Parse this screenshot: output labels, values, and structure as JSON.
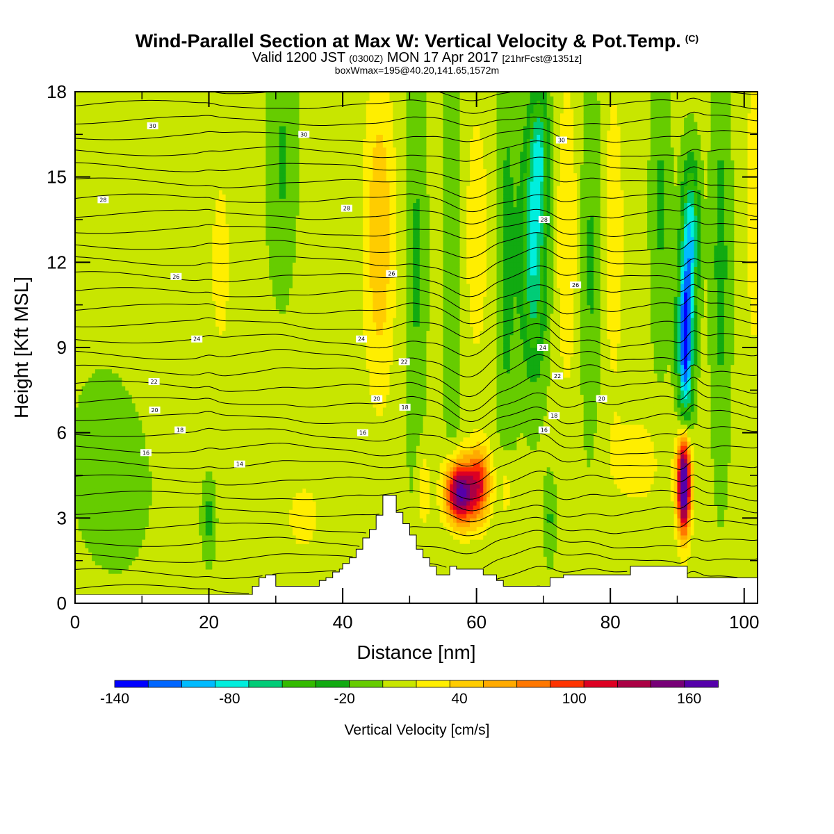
{
  "header": {
    "title": "Wind-Parallel Section at Max W: Vertical Velocity & Pot.Temp.",
    "title_mark": "(C)",
    "valid_prefix": "Valid 1200 JST",
    "valid_utc": "(0300Z)",
    "valid_date": "MON 17 Apr 2017",
    "forecast": "[21hrFcst@1351z]",
    "boxw": "boxWmax=195@40.20,141.65,1572m"
  },
  "chart_data": {
    "type": "heatmap",
    "xlabel": "Distance [nm]",
    "ylabel": "Height [Kft MSL]",
    "xlim": [
      0,
      102
    ],
    "ylim": [
      0,
      18
    ],
    "xticks": [
      0,
      20,
      40,
      60,
      80,
      100
    ],
    "yticks": [
      0,
      3,
      6,
      9,
      12,
      15,
      18
    ],
    "colorbar": {
      "title": "Vertical Velocity [cm/s]",
      "range": [
        -140,
        175
      ],
      "step": 17.5,
      "ticks": [
        "-140",
        "-80",
        "-20",
        "40",
        "100",
        "160"
      ],
      "tick_values": [
        -140,
        -80,
        -20,
        40,
        100,
        160
      ],
      "colors": [
        "#0000ff",
        "#0066ff",
        "#00bbff",
        "#00eedd",
        "#00cc77",
        "#33bb00",
        "#11aa11",
        "#66cc00",
        "#c8e600",
        "#ffee00",
        "#ffcc00",
        "#ffaa00",
        "#ff7700",
        "#ff3300",
        "#dd0022",
        "#aa0044",
        "#770077",
        "#5500aa"
      ]
    },
    "series": [
      {
        "name": "Vertical Velocity",
        "features": [
          {
            "x": 57.5,
            "y": 3.9,
            "w": 160,
            "sx": 1.5,
            "sy": 0.8
          },
          {
            "x": 60.5,
            "y": 4.2,
            "w": 90,
            "sx": 1.2,
            "sy": 0.9
          },
          {
            "x": 91.0,
            "y": 4.2,
            "w": 195,
            "sx": 0.7,
            "sy": 1.2
          },
          {
            "x": 91.2,
            "y": 9.2,
            "w": -140,
            "sx": 0.8,
            "sy": 2.0
          },
          {
            "x": 92.0,
            "y": 13.0,
            "w": -85,
            "sx": 0.9,
            "sy": 1.8
          },
          {
            "x": 68.5,
            "y": 12.5,
            "w": -80,
            "sx": 1.4,
            "sy": 3.0
          },
          {
            "x": 69.5,
            "y": 16.0,
            "w": -50,
            "sx": 1.0,
            "sy": 1.5
          },
          {
            "x": 45.5,
            "y": 13.0,
            "w": 45,
            "sx": 1.6,
            "sy": 4.0
          },
          {
            "x": 60.0,
            "y": 13.0,
            "w": 20,
            "sx": 1.6,
            "sy": 4.0
          },
          {
            "x": 73.5,
            "y": 13.0,
            "w": 28,
            "sx": 1.2,
            "sy": 4.0
          },
          {
            "x": 80.5,
            "y": 13.0,
            "w": 30,
            "sx": 1.0,
            "sy": 3.5
          },
          {
            "x": 101.5,
            "y": 14.0,
            "w": 30,
            "sx": 0.8,
            "sy": 3.5
          },
          {
            "x": 51.0,
            "y": 12.0,
            "w": -25,
            "sx": 1.0,
            "sy": 6.0
          },
          {
            "x": 56.5,
            "y": 12.0,
            "w": -22,
            "sx": 0.9,
            "sy": 6.0
          },
          {
            "x": 64.5,
            "y": 12.0,
            "w": -28,
            "sx": 1.0,
            "sy": 6.0
          },
          {
            "x": 77.0,
            "y": 12.0,
            "w": -25,
            "sx": 1.0,
            "sy": 5.0
          },
          {
            "x": 87.5,
            "y": 14.0,
            "w": -25,
            "sx": 1.0,
            "sy": 4.0
          },
          {
            "x": 96.5,
            "y": 12.0,
            "w": -30,
            "sx": 1.0,
            "sy": 5.0
          },
          {
            "x": 31.0,
            "y": 15.5,
            "w": -25,
            "sx": 1.5,
            "sy": 3.0
          },
          {
            "x": 20.0,
            "y": 3.0,
            "w": -30,
            "sx": 0.7,
            "sy": 1.0
          },
          {
            "x": 71.0,
            "y": 3.0,
            "w": -25,
            "sx": 0.6,
            "sy": 1.0
          },
          {
            "x": 64.5,
            "y": 4.0,
            "w": 28,
            "sx": 0.8,
            "sy": 1.0
          },
          {
            "x": 52.0,
            "y": 4.0,
            "w": 28,
            "sx": 0.8,
            "sy": 1.2
          },
          {
            "x": 14.0,
            "y": 12.0,
            "w": 12,
            "sx": 5.0,
            "sy": 4.0
          },
          {
            "x": 38.0,
            "y": 12.0,
            "w": 12,
            "sx": 2.5,
            "sy": 4.0
          },
          {
            "x": 22.0,
            "y": 12.0,
            "w": 12,
            "sx": 1.5,
            "sy": 4.0
          },
          {
            "x": 6.0,
            "y": 5.0,
            "w": -12,
            "sx": 5.0,
            "sy": 3.0
          },
          {
            "x": 84.0,
            "y": 5.0,
            "w": 18,
            "sx": 4.0,
            "sy": 1.5
          },
          {
            "x": 34.0,
            "y": 3.0,
            "w": 15,
            "sx": 3.0,
            "sy": 1.5
          }
        ]
      },
      {
        "name": "Potential Temperature",
        "base": -6,
        "step": 2,
        "count": 20,
        "spacing_kft": 0.55,
        "contour_labels": [
          {
            "text": "30",
            "x": 11.6,
            "y": 16.8
          },
          {
            "text": "30",
            "x": 34.2,
            "y": 16.5
          },
          {
            "text": "30",
            "x": 72.7,
            "y": 16.3
          },
          {
            "text": "28",
            "x": 4.2,
            "y": 14.2
          },
          {
            "text": "28",
            "x": 40.6,
            "y": 13.9
          },
          {
            "text": "28",
            "x": 70.1,
            "y": 13.5
          },
          {
            "text": "26",
            "x": 15.1,
            "y": 11.5
          },
          {
            "text": "26",
            "x": 47.3,
            "y": 11.6
          },
          {
            "text": "26",
            "x": 74.8,
            "y": 11.2
          },
          {
            "text": "24",
            "x": 18.2,
            "y": 9.3
          },
          {
            "text": "24",
            "x": 42.8,
            "y": 9.3
          },
          {
            "text": "24",
            "x": 69.9,
            "y": 9.0
          },
          {
            "text": "22",
            "x": 11.8,
            "y": 7.8
          },
          {
            "text": "22",
            "x": 49.2,
            "y": 8.5
          },
          {
            "text": "22",
            "x": 72.1,
            "y": 8.0
          },
          {
            "text": "20",
            "x": 11.9,
            "y": 6.8
          },
          {
            "text": "20",
            "x": 45.1,
            "y": 7.2
          },
          {
            "text": "20",
            "x": 78.7,
            "y": 7.2
          },
          {
            "text": "18",
            "x": 15.7,
            "y": 6.1
          },
          {
            "text": "18",
            "x": 49.3,
            "y": 6.9
          },
          {
            "text": "18",
            "x": 71.6,
            "y": 6.6
          },
          {
            "text": "16",
            "x": 10.6,
            "y": 5.3
          },
          {
            "text": "16",
            "x": 43.0,
            "y": 6.0
          },
          {
            "text": "16",
            "x": 70.1,
            "y": 6.1
          },
          {
            "text": "14",
            "x": 24.6,
            "y": 4.9
          }
        ]
      },
      {
        "name": "Terrain",
        "x": [
          0,
          26.5,
          26.5,
          27.5,
          27.5,
          28.5,
          28.5,
          30.0,
          30.0,
          36.5,
          36.5,
          37.5,
          37.5,
          38.5,
          38.5,
          39.5,
          39.5,
          40.0,
          40.0,
          41.0,
          41.0,
          42.0,
          42.0,
          43.0,
          43.0,
          44.0,
          44.0,
          45.0,
          45.0,
          46.0,
          46.0,
          48.0,
          48.0,
          49.0,
          49.0,
          50.0,
          50.0,
          51.0,
          51.0,
          52.0,
          52.0,
          53.0,
          53.0,
          54.0,
          54.0,
          56.0,
          56.0,
          57.0,
          57.0,
          61.0,
          61.0,
          63.0,
          63.0,
          64.0,
          64.0,
          71.0,
          71.0,
          73.0,
          73.0,
          83.0,
          83.0,
          91.5,
          91.5,
          102
        ],
        "y": [
          0.3,
          0.3,
          0.6,
          0.6,
          0.9,
          0.9,
          1.0,
          1.0,
          0.6,
          0.6,
          0.8,
          0.8,
          0.9,
          0.9,
          1.1,
          1.1,
          1.2,
          1.2,
          1.4,
          1.4,
          1.6,
          1.6,
          1.9,
          1.9,
          2.3,
          2.3,
          2.6,
          2.6,
          3.1,
          3.1,
          3.8,
          3.8,
          3.2,
          3.2,
          2.8,
          2.8,
          2.4,
          2.4,
          1.9,
          1.9,
          1.6,
          1.6,
          1.3,
          1.3,
          1.0,
          1.0,
          1.3,
          1.3,
          1.2,
          1.2,
          1.0,
          1.0,
          0.8,
          0.8,
          0.6,
          0.6,
          0.9,
          0.9,
          1.0,
          1.0,
          1.3,
          1.3,
          0.9,
          0.9
        ]
      }
    ]
  }
}
